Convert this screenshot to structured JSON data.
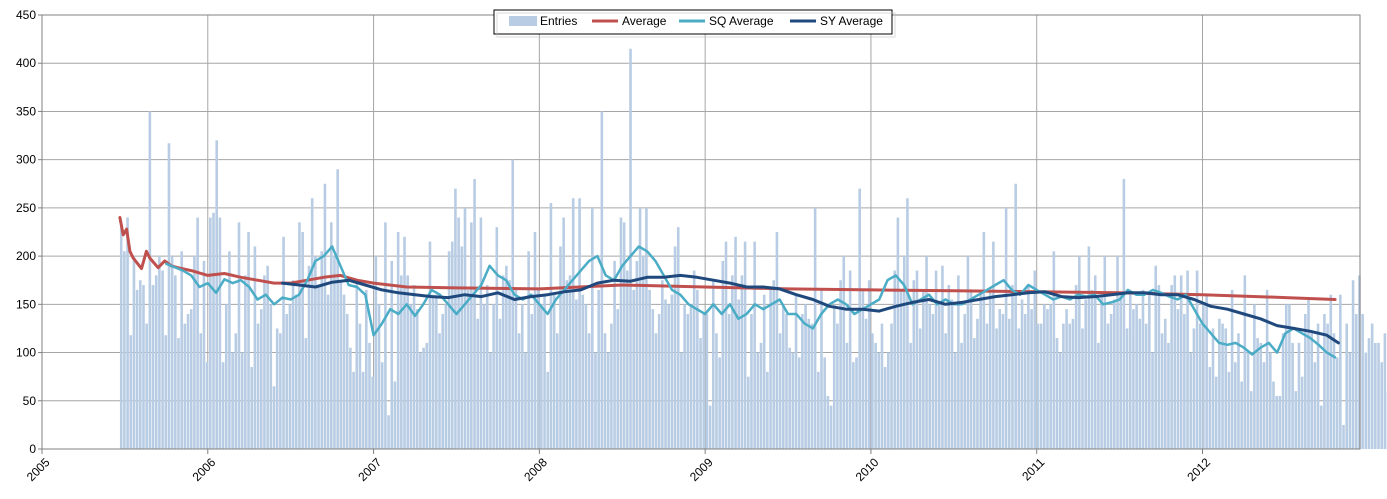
{
  "chart_data": {
    "type": "bar",
    "title": "",
    "xlabel": "",
    "ylabel": "",
    "xlim": [
      2005.0,
      2012.95
    ],
    "ylim": [
      0,
      450
    ],
    "yticks": [
      "0",
      "50",
      "100",
      "150",
      "200",
      "250",
      "300",
      "350",
      "400",
      "450"
    ],
    "xticks": [
      "2005",
      "2006",
      "2007",
      "2008",
      "2009",
      "2010",
      "2011",
      "2012"
    ],
    "grid": true,
    "legend_position": "top",
    "colors": {
      "Entries": "#b8cce4",
      "Average": "#c0504d",
      "SQ Average": "#4bacc6",
      "SY Average": "#1f497d",
      "grid": "#a6a6a6",
      "axis": "#808080"
    },
    "entries": {
      "name": "Entries",
      "x_start": 2005.47,
      "x_step": 0.0192,
      "values": [
        235,
        205,
        240,
        118,
        200,
        165,
        175,
        170,
        130,
        350,
        170,
        180,
        200,
        185,
        118,
        317,
        200,
        180,
        115,
        205,
        130,
        140,
        145,
        200,
        240,
        120,
        195,
        90,
        240,
        245,
        320,
        240,
        90,
        150,
        205,
        100,
        120,
        235,
        100,
        180,
        225,
        85,
        210,
        130,
        145,
        180,
        190,
        150,
        65,
        125,
        120,
        220,
        140,
        150,
        175,
        160,
        235,
        225,
        115,
        190,
        260,
        200,
        170,
        205,
        275,
        160,
        235,
        200,
        290,
        175,
        160,
        140,
        105,
        80,
        175,
        130,
        80,
        165,
        110,
        75,
        200,
        150,
        90,
        235,
        35,
        195,
        70,
        225,
        180,
        220,
        180,
        150,
        170,
        145,
        100,
        105,
        110,
        215,
        160,
        160,
        120,
        140,
        150,
        205,
        215,
        270,
        240,
        210,
        250,
        165,
        235,
        280,
        135,
        240,
        150,
        170,
        100,
        150,
        230,
        135,
        180,
        190,
        175,
        300,
        165,
        120,
        150,
        100,
        205,
        140,
        225,
        165,
        150,
        160,
        80,
        255,
        160,
        120,
        210,
        240,
        175,
        180,
        260,
        155,
        260,
        160,
        150,
        120,
        250,
        100,
        165,
        350,
        120,
        100,
        130,
        195,
        145,
        240,
        235,
        185,
        415,
        165,
        195,
        250,
        200,
        250,
        165,
        145,
        120,
        140,
        175,
        155,
        150,
        160,
        210,
        230,
        100,
        150,
        140,
        150,
        185,
        165,
        115,
        140,
        140,
        45,
        175,
        120,
        95,
        195,
        215,
        140,
        180,
        220,
        155,
        180,
        215,
        75,
        140,
        215,
        100,
        110,
        160,
        80,
        165,
        175,
        225,
        120,
        150,
        140,
        105,
        100,
        160,
        95,
        140,
        150,
        135,
        130,
        250,
        80,
        165,
        95,
        55,
        45,
        150,
        130,
        175,
        200,
        110,
        185,
        90,
        95,
        270,
        165,
        135,
        175,
        120,
        110,
        100,
        130,
        85,
        100,
        130,
        185,
        240,
        165,
        200,
        260,
        110,
        175,
        185,
        125,
        165,
        200,
        150,
        140,
        185,
        150,
        190,
        120,
        170,
        155,
        100,
        180,
        110,
        140,
        200,
        165,
        115,
        135,
        165,
        225,
        130,
        165,
        215,
        125,
        145,
        140,
        250,
        135,
        170,
        275,
        125,
        155,
        140,
        170,
        145,
        185,
        130,
        130,
        150,
        145,
        150,
        205,
        115,
        100,
        130,
        145,
        130,
        135,
        170,
        200,
        125,
        155,
        210,
        165,
        180,
        110,
        160,
        200,
        130,
        140,
        155,
        200,
        160,
        280,
        125,
        160,
        145,
        150,
        135,
        165,
        130,
        160,
        100,
        190,
        170,
        120,
        135,
        110,
        170,
        180,
        145,
        180,
        140,
        185,
        100,
        125,
        185,
        130,
        150,
        160,
        85,
        125,
        75,
        135,
        130,
        125,
        80,
        165,
        90,
        120,
        70,
        180,
        100,
        60,
        150,
        115,
        110,
        90,
        165,
        100,
        70,
        55,
        55,
        120,
        150,
        150,
        110,
        60,
        110,
        75,
        140,
        155,
        120,
        90,
        130,
        45,
        140,
        130,
        160,
        120,
        95,
        160,
        25,
        130,
        100,
        175,
        140,
        180,
        140,
        100,
        115,
        130,
        110,
        110,
        90,
        120,
        60,
        85,
        60,
        100,
        140,
        70,
        115,
        90,
        75,
        80
      ]
    },
    "series": [
      {
        "name": "Average",
        "x": [
          2005.47,
          2005.49,
          2005.51,
          2005.53,
          2005.55,
          2005.6,
          2005.63,
          2005.65,
          2005.7,
          2005.74,
          2005.78,
          2005.82,
          2005.9,
          2006.0,
          2006.1,
          2006.2,
          2006.3,
          2006.4,
          2006.5,
          2006.6,
          2006.7,
          2006.8,
          2006.9,
          2007.0,
          2007.2,
          2007.5,
          2008.0,
          2008.5,
          2009.0,
          2009.5,
          2010.0,
          2010.5,
          2011.0,
          2011.5,
          2012.0,
          2012.5,
          2012.8
        ],
        "y": [
          240,
          222,
          228,
          205,
          198,
          187,
          205,
          198,
          188,
          195,
          190,
          188,
          185,
          180,
          182,
          178,
          175,
          172,
          172,
          175,
          178,
          180,
          175,
          172,
          168,
          167,
          166,
          170,
          168,
          166,
          165,
          164,
          163,
          162,
          160,
          157,
          155
        ]
      },
      {
        "name": "SQ Average",
        "x": [
          2005.75,
          2005.85,
          2005.9,
          2005.95,
          2006.0,
          2006.05,
          2006.1,
          2006.15,
          2006.2,
          2006.25,
          2006.3,
          2006.35,
          2006.4,
          2006.45,
          2006.5,
          2006.55,
          2006.6,
          2006.65,
          2006.7,
          2006.75,
          2006.8,
          2006.85,
          2006.9,
          2006.95,
          2007.0,
          2007.05,
          2007.1,
          2007.15,
          2007.2,
          2007.25,
          2007.3,
          2007.35,
          2007.4,
          2007.45,
          2007.5,
          2007.55,
          2007.6,
          2007.65,
          2007.7,
          2007.75,
          2007.8,
          2007.85,
          2007.9,
          2007.95,
          2008.0,
          2008.05,
          2008.1,
          2008.15,
          2008.2,
          2008.25,
          2008.3,
          2008.35,
          2008.4,
          2008.45,
          2008.5,
          2008.55,
          2008.6,
          2008.65,
          2008.7,
          2008.75,
          2008.8,
          2008.85,
          2008.9,
          2008.95,
          2009.0,
          2009.05,
          2009.1,
          2009.15,
          2009.2,
          2009.25,
          2009.3,
          2009.35,
          2009.4,
          2009.45,
          2009.5,
          2009.55,
          2009.6,
          2009.65,
          2009.7,
          2009.75,
          2009.8,
          2009.85,
          2009.9,
          2009.95,
          2010.0,
          2010.05,
          2010.1,
          2010.15,
          2010.2,
          2010.25,
          2010.3,
          2010.35,
          2010.4,
          2010.45,
          2010.5,
          2010.55,
          2010.6,
          2010.65,
          2010.7,
          2010.75,
          2010.8,
          2010.85,
          2010.9,
          2010.95,
          2011.0,
          2011.05,
          2011.1,
          2011.15,
          2011.2,
          2011.25,
          2011.3,
          2011.35,
          2011.4,
          2011.45,
          2011.5,
          2011.55,
          2011.6,
          2011.65,
          2011.7,
          2011.75,
          2011.8,
          2011.85,
          2011.9,
          2011.95,
          2012.0,
          2012.05,
          2012.1,
          2012.15,
          2012.2,
          2012.25,
          2012.3,
          2012.35,
          2012.4,
          2012.45,
          2012.5,
          2012.55,
          2012.6,
          2012.65,
          2012.7,
          2012.75,
          2012.8
        ],
        "y": [
          192,
          185,
          180,
          168,
          172,
          162,
          176,
          172,
          175,
          168,
          155,
          160,
          150,
          157,
          155,
          160,
          175,
          195,
          200,
          210,
          190,
          170,
          168,
          160,
          118,
          130,
          145,
          140,
          150,
          138,
          150,
          165,
          160,
          150,
          140,
          150,
          160,
          170,
          190,
          180,
          175,
          160,
          155,
          160,
          150,
          140,
          155,
          165,
          175,
          185,
          195,
          200,
          180,
          175,
          190,
          200,
          210,
          205,
          195,
          180,
          165,
          160,
          150,
          145,
          140,
          150,
          140,
          150,
          135,
          140,
          150,
          145,
          150,
          155,
          140,
          140,
          130,
          125,
          140,
          150,
          155,
          150,
          140,
          145,
          150,
          155,
          175,
          180,
          170,
          150,
          155,
          160,
          150,
          155,
          150,
          150,
          155,
          160,
          165,
          170,
          175,
          165,
          160,
          170,
          165,
          160,
          155,
          158,
          155,
          160,
          158,
          160,
          150,
          152,
          155,
          165,
          160,
          160,
          165,
          162,
          158,
          155,
          160,
          145,
          130,
          120,
          110,
          108,
          110,
          105,
          98,
          105,
          110,
          100,
          120,
          125,
          120,
          115,
          108,
          100,
          95
        ]
      },
      {
        "name": "SY Average",
        "x": [
          2006.45,
          2006.55,
          2006.65,
          2006.75,
          2006.85,
          2006.95,
          2007.05,
          2007.15,
          2007.25,
          2007.35,
          2007.45,
          2007.55,
          2007.65,
          2007.75,
          2007.85,
          2007.95,
          2008.05,
          2008.15,
          2008.25,
          2008.35,
          2008.45,
          2008.55,
          2008.65,
          2008.75,
          2008.85,
          2008.95,
          2009.05,
          2009.15,
          2009.25,
          2009.35,
          2009.45,
          2009.55,
          2009.65,
          2009.75,
          2009.85,
          2009.95,
          2010.05,
          2010.15,
          2010.25,
          2010.35,
          2010.45,
          2010.55,
          2010.65,
          2010.75,
          2010.85,
          2010.95,
          2011.05,
          2011.15,
          2011.25,
          2011.35,
          2011.45,
          2011.55,
          2011.65,
          2011.75,
          2011.85,
          2011.95,
          2012.05,
          2012.15,
          2012.25,
          2012.35,
          2012.45,
          2012.55,
          2012.65,
          2012.75,
          2012.82
        ],
        "y": [
          172,
          170,
          168,
          173,
          175,
          170,
          165,
          162,
          160,
          158,
          157,
          160,
          158,
          162,
          155,
          158,
          160,
          163,
          165,
          172,
          175,
          174,
          178,
          178,
          180,
          178,
          175,
          172,
          168,
          168,
          166,
          160,
          155,
          148,
          145,
          145,
          143,
          148,
          152,
          155,
          150,
          152,
          155,
          158,
          160,
          162,
          163,
          158,
          157,
          158,
          160,
          162,
          162,
          160,
          160,
          155,
          148,
          145,
          140,
          135,
          128,
          125,
          122,
          118,
          110
        ]
      }
    ]
  }
}
